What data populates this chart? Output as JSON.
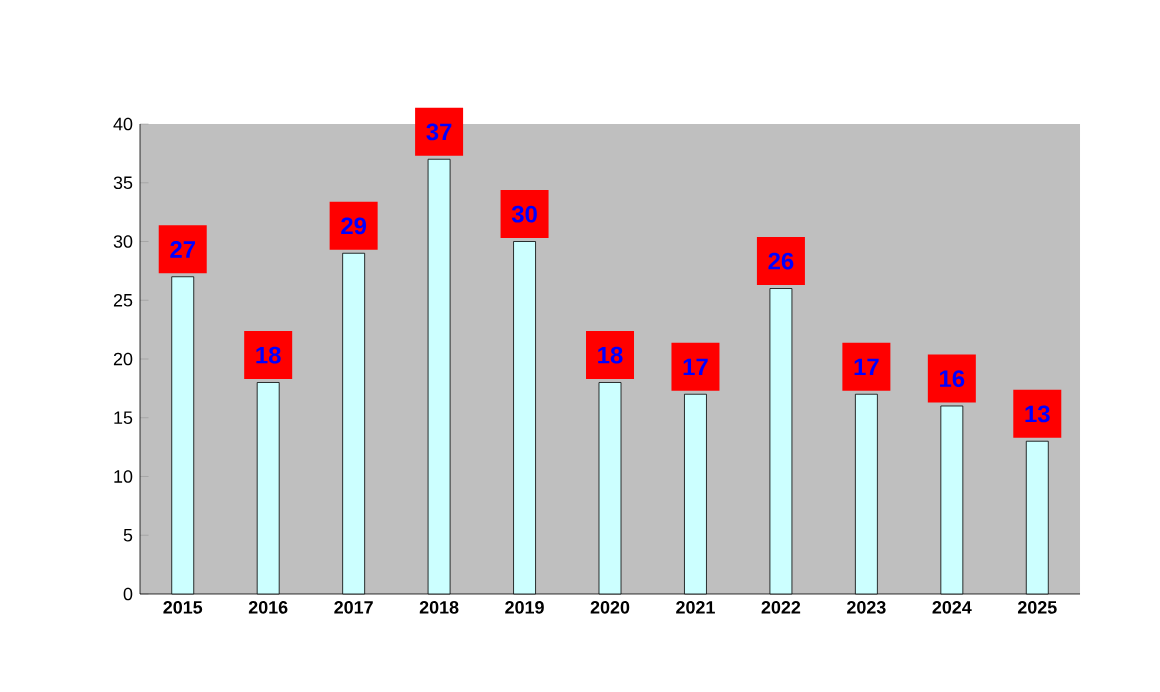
{
  "chart_data": {
    "type": "bar",
    "categories": [
      "2015",
      "2016",
      "2017",
      "2018",
      "2019",
      "2020",
      "2021",
      "2022",
      "2023",
      "2024",
      "2025"
    ],
    "values": [
      27,
      18,
      29,
      37,
      30,
      18,
      17,
      26,
      17,
      16,
      13
    ],
    "color": "#ccffff",
    "ylim": [
      0,
      40
    ],
    "yticks": [
      0,
      5,
      10,
      15,
      20,
      25,
      30,
      35,
      40
    ],
    "data_labels": true
  }
}
